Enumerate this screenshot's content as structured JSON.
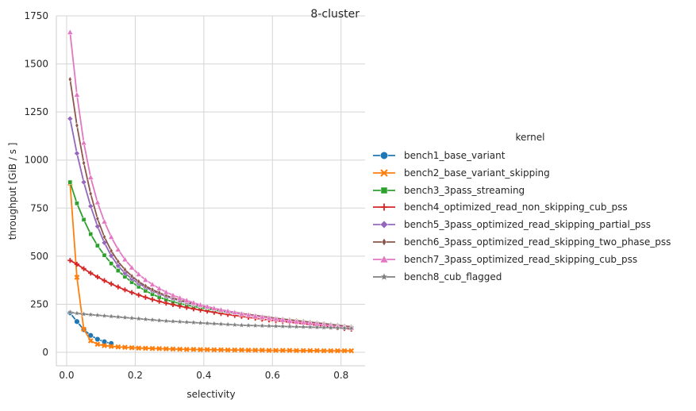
{
  "chart_data": {
    "type": "line",
    "title": "8-cluster",
    "xlabel": "selectivity",
    "ylabel": "throughput [GiB / s ]",
    "xlim": [
      -0.03,
      0.87
    ],
    "ylim": [
      -70,
      1750
    ],
    "xticks": [
      0,
      0.2,
      0.4,
      0.6,
      0.8
    ],
    "xtick_labels": [
      "0.0",
      "0.2",
      "0.4",
      "0.6",
      "0.8"
    ],
    "yticks": [
      0,
      250,
      500,
      750,
      1000,
      1250,
      1500,
      1750
    ],
    "ytick_labels": [
      "0",
      "250",
      "500",
      "750",
      "1000",
      "1250",
      "1500",
      "1750"
    ],
    "grid": true,
    "legend_title": "kernel",
    "legend_position": "right",
    "x": [
      0.01,
      0.03,
      0.05,
      0.07,
      0.09,
      0.11,
      0.13,
      0.15,
      0.17,
      0.19,
      0.21,
      0.23,
      0.25,
      0.27,
      0.29,
      0.31,
      0.33,
      0.35,
      0.37,
      0.39,
      0.41,
      0.43,
      0.45,
      0.47,
      0.49,
      0.51,
      0.53,
      0.55,
      0.57,
      0.59,
      0.61,
      0.63,
      0.65,
      0.67,
      0.69,
      0.71,
      0.73,
      0.75,
      0.77,
      0.79,
      0.81,
      0.83
    ],
    "series": [
      {
        "name": "bench1_base_variant",
        "color": "#1f77b4",
        "marker": "circle",
        "values": [
          205,
          160,
          118,
          88,
          68,
          55,
          46,
          null,
          null,
          null,
          null,
          null,
          null,
          null,
          null,
          null,
          null,
          null,
          null,
          null,
          null,
          null,
          null,
          null,
          null,
          null,
          null,
          null,
          null,
          null,
          null,
          null,
          null,
          null,
          null,
          null,
          null,
          null,
          null,
          null,
          null,
          null
        ]
      },
      {
        "name": "bench2_base_variant_skipping",
        "color": "#ff7f0e",
        "marker": "x",
        "values": [
          880,
          390,
          120,
          60,
          42,
          35,
          31,
          28,
          26,
          24,
          22,
          21,
          20,
          19,
          18,
          17,
          16,
          15,
          15,
          14,
          14,
          13,
          13,
          12,
          12,
          12,
          11,
          11,
          11,
          10,
          10,
          10,
          10,
          9,
          9,
          9,
          9,
          8,
          8,
          8,
          8,
          8
        ]
      },
      {
        "name": "bench3_3pass_streaming",
        "color": "#2ca02c",
        "marker": "square",
        "values": [
          885,
          775,
          690,
          615,
          555,
          505,
          462,
          425,
          393,
          365,
          341,
          320,
          302,
          287,
          274,
          263,
          254,
          246,
          239,
          232,
          226,
          220,
          214,
          209,
          204,
          199,
          194,
          189,
          184,
          179,
          174,
          170,
          166,
          162,
          158,
          154,
          150,
          146,
          142,
          138,
          133,
          128
        ]
      },
      {
        "name": "bench4_optimized_read_non_skipping_cub_pss",
        "color": "#d62728",
        "marker": "plus",
        "values": [
          478,
          458,
          435,
          412,
          392,
          373,
          356,
          340,
          325,
          311,
          298,
          286,
          275,
          265,
          256,
          248,
          240,
          233,
          226,
          220,
          214,
          208,
          202,
          197,
          192,
          187,
          182,
          177,
          172,
          168,
          164,
          160,
          156,
          152,
          148,
          144,
          140,
          136,
          132,
          128,
          124,
          120
        ]
      },
      {
        "name": "bench5_3pass_optimized_read_skipping_partial_pss",
        "color": "#9467bd",
        "marker": "diamond",
        "values": [
          1215,
          1035,
          885,
          760,
          655,
          570,
          502,
          450,
          412,
          382,
          358,
          338,
          320,
          305,
          291,
          279,
          268,
          258,
          249,
          241,
          233,
          226,
          219,
          213,
          207,
          201,
          196,
          191,
          186,
          181,
          176,
          172,
          168,
          164,
          160,
          156,
          152,
          148,
          144,
          140,
          136,
          132
        ]
      },
      {
        "name": "bench6_3pass_optimized_read_skipping_two_phase_pss",
        "color": "#8c564b",
        "marker": "thin_diamond",
        "values": [
          1420,
          1180,
          985,
          825,
          695,
          600,
          528,
          472,
          430,
          396,
          368,
          345,
          326,
          310,
          296,
          283,
          272,
          262,
          252,
          243,
          235,
          228,
          221,
          214,
          208,
          202,
          197,
          192,
          187,
          182,
          177,
          173,
          169,
          165,
          161,
          157,
          153,
          149,
          145,
          141,
          137,
          133
        ]
      },
      {
        "name": "bench7_3pass_optimized_read_skipping_cub_pss",
        "color": "#e377c2",
        "marker": "triangle",
        "values": [
          1665,
          1340,
          1090,
          910,
          780,
          680,
          600,
          535,
          483,
          441,
          406,
          377,
          353,
          332,
          313,
          297,
          283,
          270,
          258,
          247,
          238,
          229,
          221,
          214,
          207,
          200,
          194,
          188,
          183,
          178,
          173,
          168,
          163,
          159,
          155,
          151,
          147,
          143,
          139,
          135,
          131,
          127
        ]
      },
      {
        "name": "bench8_cub_flagged",
        "color": "#7f7f7f",
        "marker": "star",
        "values": [
          208,
          203,
          199,
          196,
          193,
          190,
          187,
          184,
          181,
          178,
          175,
          172,
          169,
          166,
          163,
          161,
          159,
          157,
          155,
          153,
          151,
          149,
          147,
          145,
          143,
          141,
          140,
          139,
          138,
          137,
          136,
          135,
          134,
          133,
          132,
          131,
          130,
          129,
          128,
          127,
          126,
          125
        ]
      }
    ]
  }
}
